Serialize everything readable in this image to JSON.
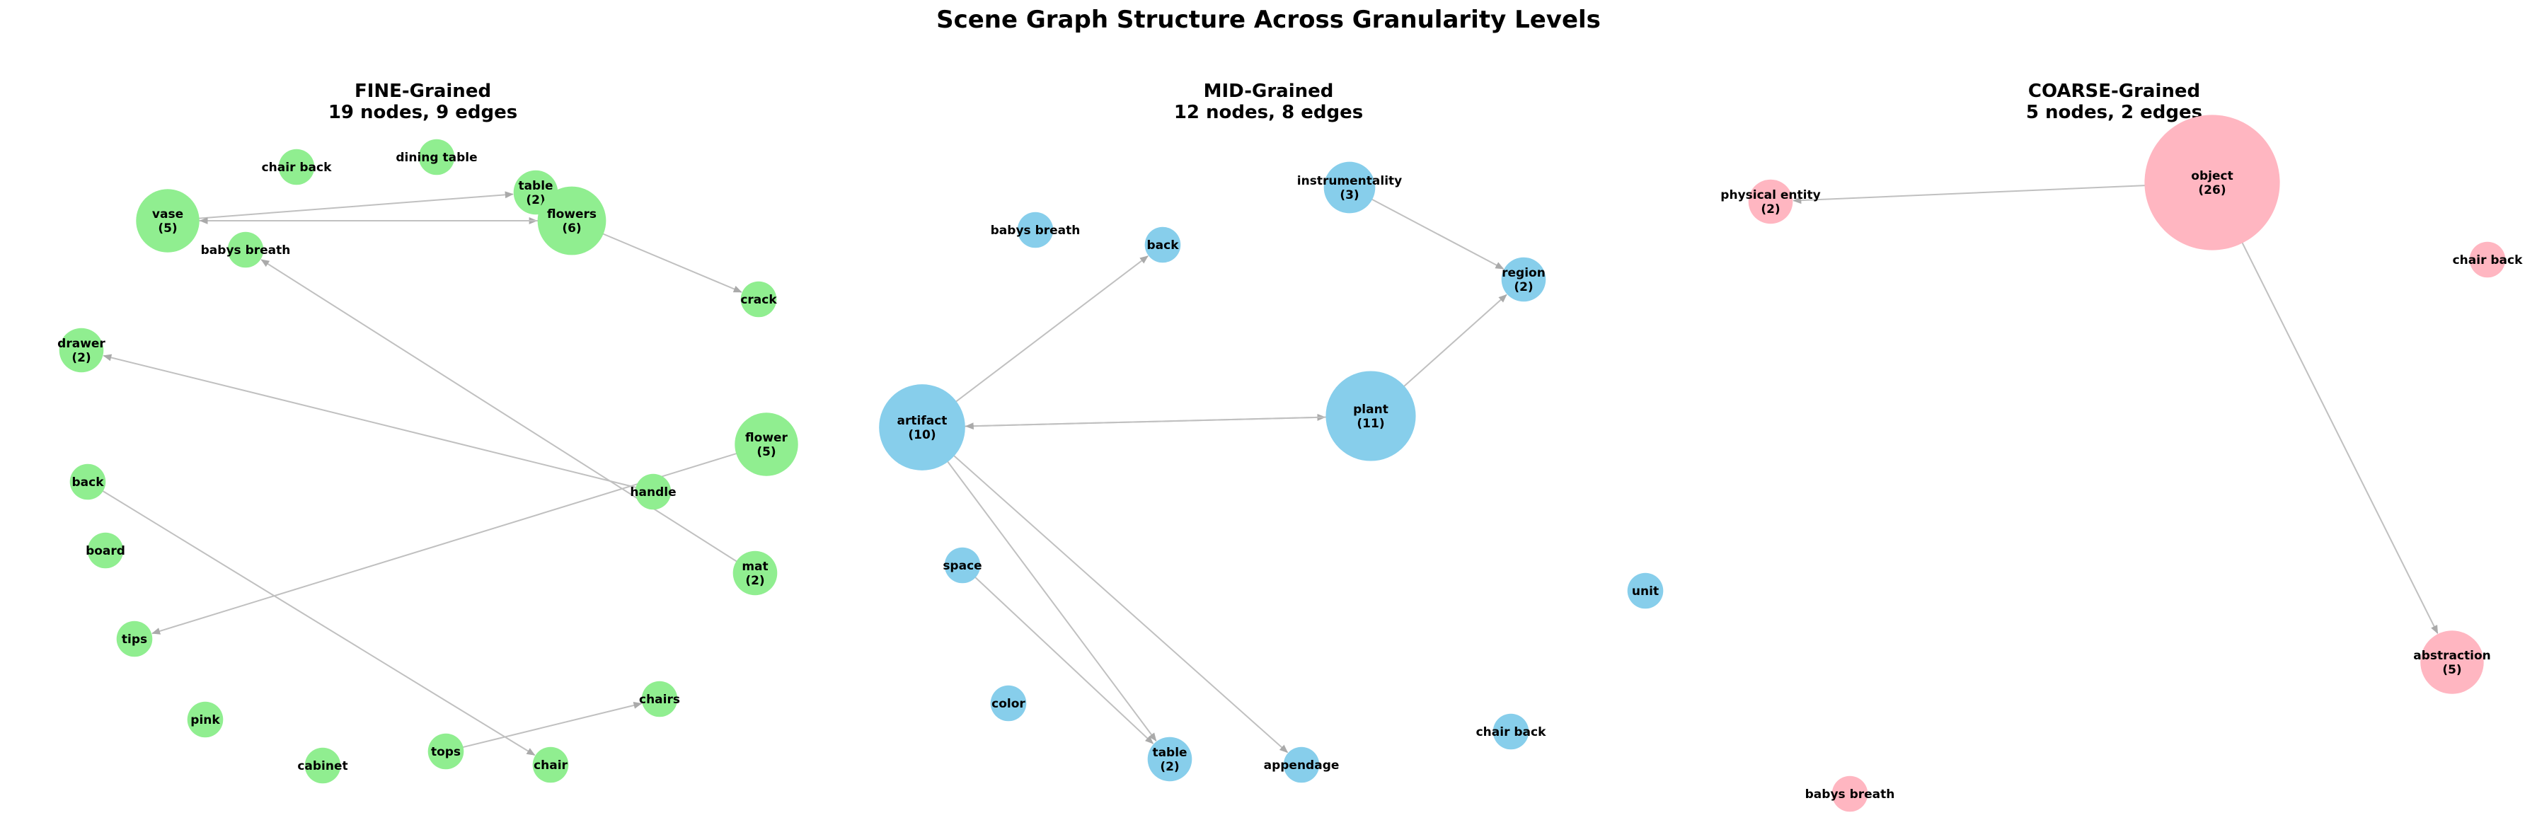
{
  "title": "Scene Graph Structure Across Granularity Levels",
  "colors": {
    "fine": "#90ee90",
    "mid": "#87ceeb",
    "coarse": "#ffb6c1",
    "edge": "#c0c0c0"
  },
  "chart_data": [
    {
      "type": "network",
      "title_line1": "FINE-Grained",
      "title_line2": "19 nodes, 9 edges",
      "nodes": [
        {
          "id": "chair back",
          "label": "chair back",
          "count": 1
        },
        {
          "id": "dining table",
          "label": "dining table",
          "count": 1
        },
        {
          "id": "table",
          "label": "table",
          "count": 2
        },
        {
          "id": "vase",
          "label": "vase",
          "count": 5
        },
        {
          "id": "flowers",
          "label": "flowers",
          "count": 6
        },
        {
          "id": "babys breath",
          "label": "babys breath",
          "count": 1
        },
        {
          "id": "crack",
          "label": "crack",
          "count": 1
        },
        {
          "id": "drawer",
          "label": "drawer",
          "count": 2
        },
        {
          "id": "flower",
          "label": "flower",
          "count": 5
        },
        {
          "id": "back",
          "label": "back",
          "count": 1
        },
        {
          "id": "handle",
          "label": "handle",
          "count": 1
        },
        {
          "id": "board",
          "label": "board",
          "count": 1
        },
        {
          "id": "mat",
          "label": "mat",
          "count": 2
        },
        {
          "id": "tips",
          "label": "tips",
          "count": 1
        },
        {
          "id": "chairs",
          "label": "chairs",
          "count": 1
        },
        {
          "id": "pink",
          "label": "pink",
          "count": 1
        },
        {
          "id": "tops",
          "label": "tops",
          "count": 1
        },
        {
          "id": "cabinet",
          "label": "cabinet",
          "count": 1
        },
        {
          "id": "chair",
          "label": "chair",
          "count": 1
        }
      ],
      "edges": [
        {
          "source": "vase",
          "target": "table"
        },
        {
          "source": "vase",
          "target": "flowers"
        },
        {
          "source": "flowers",
          "target": "vase"
        },
        {
          "source": "flowers",
          "target": "crack"
        },
        {
          "source": "handle",
          "target": "drawer"
        },
        {
          "source": "flower",
          "target": "tips"
        },
        {
          "source": "mat",
          "target": "babys breath"
        },
        {
          "source": "back",
          "target": "chair"
        },
        {
          "source": "tops",
          "target": "chairs"
        }
      ]
    },
    {
      "type": "network",
      "title_line1": "MID-Grained",
      "title_line2": "12 nodes, 8 edges",
      "nodes": [
        {
          "id": "babys breath",
          "label": "babys breath",
          "count": 1
        },
        {
          "id": "back",
          "label": "back",
          "count": 1
        },
        {
          "id": "instrumentality",
          "label": "instrumentality",
          "count": 3
        },
        {
          "id": "region",
          "label": "region",
          "count": 2
        },
        {
          "id": "artifact",
          "label": "artifact",
          "count": 10
        },
        {
          "id": "plant",
          "label": "plant",
          "count": 11
        },
        {
          "id": "space",
          "label": "space",
          "count": 1
        },
        {
          "id": "color",
          "label": "color",
          "count": 1
        },
        {
          "id": "table",
          "label": "table",
          "count": 2
        },
        {
          "id": "appendage",
          "label": "appendage",
          "count": 1
        },
        {
          "id": "unit",
          "label": "unit",
          "count": 1
        },
        {
          "id": "chair back",
          "label": "chair back",
          "count": 1
        }
      ],
      "edges": [
        {
          "source": "artifact",
          "target": "back"
        },
        {
          "source": "artifact",
          "target": "plant"
        },
        {
          "source": "plant",
          "target": "artifact"
        },
        {
          "source": "artifact",
          "target": "table"
        },
        {
          "source": "artifact",
          "target": "appendage"
        },
        {
          "source": "instrumentality",
          "target": "region"
        },
        {
          "source": "plant",
          "target": "region"
        },
        {
          "source": "space",
          "target": "table"
        }
      ]
    },
    {
      "type": "network",
      "title_line1": "COARSE-Grained",
      "title_line2": "5 nodes, 2 edges",
      "nodes": [
        {
          "id": "physical entity",
          "label": "physical entity",
          "count": 2
        },
        {
          "id": "object",
          "label": "object",
          "count": 26
        },
        {
          "id": "chair back",
          "label": "chair back",
          "count": 1
        },
        {
          "id": "abstraction",
          "label": "abstraction",
          "count": 5
        },
        {
          "id": "babys breath",
          "label": "babys breath",
          "count": 1
        }
      ],
      "edges": [
        {
          "source": "object",
          "target": "physical entity"
        },
        {
          "source": "object",
          "target": "abstraction"
        }
      ]
    }
  ]
}
